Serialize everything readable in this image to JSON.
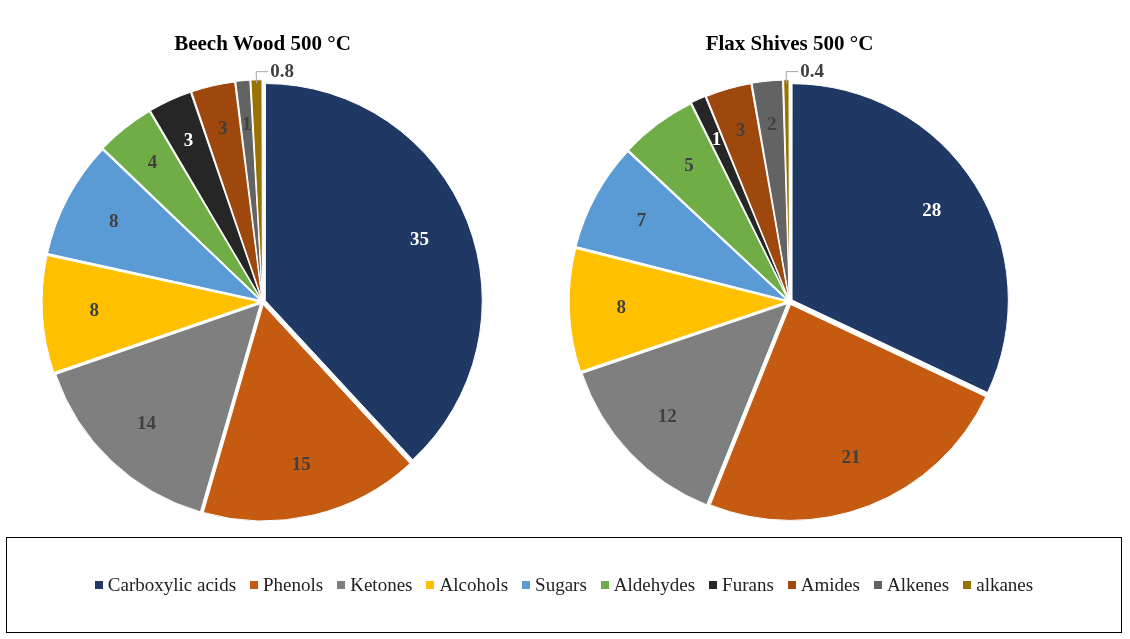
{
  "chart_data": [
    {
      "type": "pie",
      "title": "Beech Wood 500 °C",
      "categories": [
        "Carboxylic acids",
        "Phenols",
        "Ketones",
        "Alcohols",
        "Sugars",
        "Aldehydes",
        "Furans",
        "Amides",
        "Alkenes",
        "alkanes"
      ],
      "values": [
        35,
        15,
        14,
        8,
        8,
        4,
        3,
        3,
        1,
        0.8
      ],
      "colors": [
        "#1f3864",
        "#c55a11",
        "#7f7f7f",
        "#ffc000",
        "#5b9bd5",
        "#70ad47",
        "#262626",
        "#9e480e",
        "#636363",
        "#997300"
      ],
      "data_labels": true,
      "legend": "bottom"
    },
    {
      "type": "pie",
      "title": "Flax Shives 500 °C",
      "categories": [
        null,
        null,
        null,
        null,
        null,
        null,
        null,
        null,
        null,
        null
      ],
      "values": [
        28,
        21,
        12,
        8,
        7,
        5,
        1,
        3,
        2,
        0.4
      ],
      "colors": [
        "#1f3864",
        "#c55a11",
        "#7f7f7f",
        "#ffc000",
        "#5b9bd5",
        "#70ad47",
        "#262626",
        "#9e480e",
        "#636363",
        "#997300"
      ],
      "data_labels": true
    }
  ]
}
